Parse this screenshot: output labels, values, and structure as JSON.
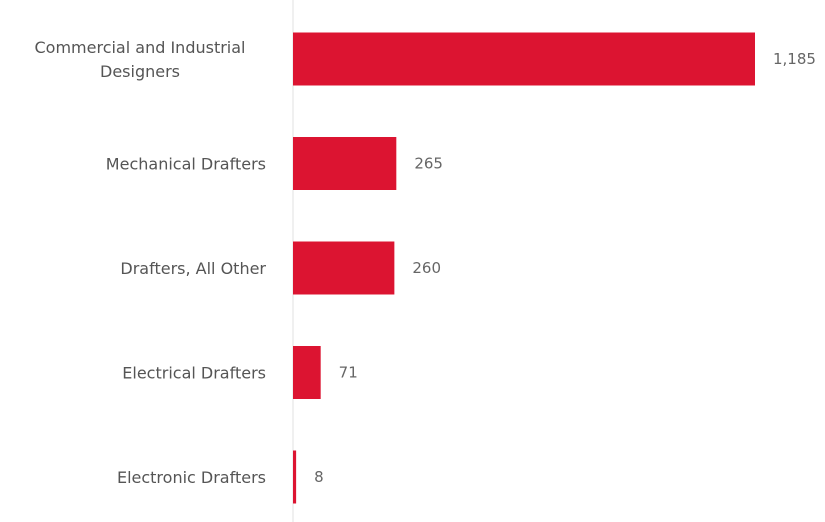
{
  "chart_data": {
    "type": "bar",
    "orientation": "horizontal",
    "categories": [
      "Commercial and Industrial Designers",
      "Mechanical Drafters",
      "Drafters, All Other",
      "Electrical Drafters",
      "Electronic Drafters"
    ],
    "category_lines": [
      [
        "Commercial and Industrial",
        "Designers"
      ],
      [
        "Mechanical Drafters"
      ],
      [
        "Drafters, All Other"
      ],
      [
        "Electrical Drafters"
      ],
      [
        "Electronic Drafters"
      ]
    ],
    "values": [
      1185,
      265,
      260,
      71,
      8
    ],
    "value_labels": [
      "1,185",
      "265",
      "260",
      "71",
      "8"
    ],
    "bar_color": "#dc1431",
    "title": "",
    "xlabel": "",
    "ylabel": "",
    "xlim": [
      0,
      1185
    ],
    "grid": false,
    "legend": "none"
  }
}
